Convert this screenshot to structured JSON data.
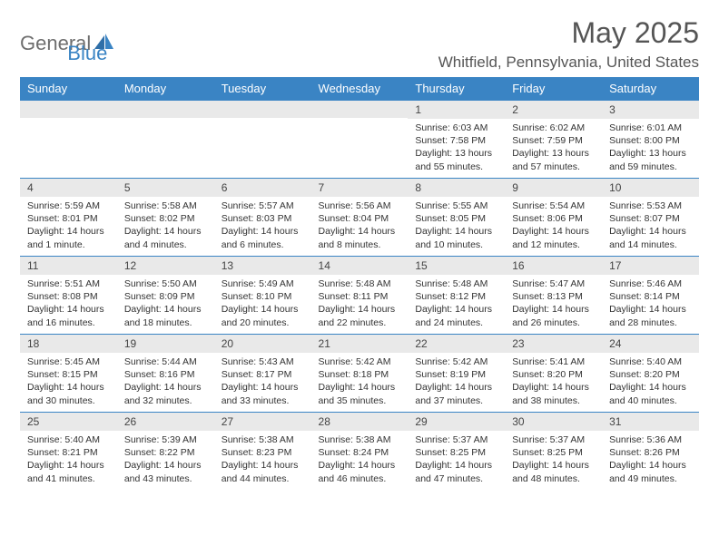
{
  "logo": {
    "part1": "General",
    "part2": "Blue"
  },
  "title": "May 2025",
  "location": "Whitfield, Pennsylvania, United States",
  "colors": {
    "header_bg": "#3a84c4",
    "header_text": "#ffffff",
    "daynum_bg": "#e9e9e9",
    "border": "#3a84c4",
    "body_text": "#333333",
    "title_text": "#555555",
    "logo_gray": "#6e6e6e",
    "logo_blue": "#3a84c4"
  },
  "day_headers": [
    "Sunday",
    "Monday",
    "Tuesday",
    "Wednesday",
    "Thursday",
    "Friday",
    "Saturday"
  ],
  "weeks": [
    [
      {
        "n": "",
        "sr": "",
        "ss": "",
        "dl": ""
      },
      {
        "n": "",
        "sr": "",
        "ss": "",
        "dl": ""
      },
      {
        "n": "",
        "sr": "",
        "ss": "",
        "dl": ""
      },
      {
        "n": "",
        "sr": "",
        "ss": "",
        "dl": ""
      },
      {
        "n": "1",
        "sr": "Sunrise: 6:03 AM",
        "ss": "Sunset: 7:58 PM",
        "dl": "Daylight: 13 hours and 55 minutes."
      },
      {
        "n": "2",
        "sr": "Sunrise: 6:02 AM",
        "ss": "Sunset: 7:59 PM",
        "dl": "Daylight: 13 hours and 57 minutes."
      },
      {
        "n": "3",
        "sr": "Sunrise: 6:01 AM",
        "ss": "Sunset: 8:00 PM",
        "dl": "Daylight: 13 hours and 59 minutes."
      }
    ],
    [
      {
        "n": "4",
        "sr": "Sunrise: 5:59 AM",
        "ss": "Sunset: 8:01 PM",
        "dl": "Daylight: 14 hours and 1 minute."
      },
      {
        "n": "5",
        "sr": "Sunrise: 5:58 AM",
        "ss": "Sunset: 8:02 PM",
        "dl": "Daylight: 14 hours and 4 minutes."
      },
      {
        "n": "6",
        "sr": "Sunrise: 5:57 AM",
        "ss": "Sunset: 8:03 PM",
        "dl": "Daylight: 14 hours and 6 minutes."
      },
      {
        "n": "7",
        "sr": "Sunrise: 5:56 AM",
        "ss": "Sunset: 8:04 PM",
        "dl": "Daylight: 14 hours and 8 minutes."
      },
      {
        "n": "8",
        "sr": "Sunrise: 5:55 AM",
        "ss": "Sunset: 8:05 PM",
        "dl": "Daylight: 14 hours and 10 minutes."
      },
      {
        "n": "9",
        "sr": "Sunrise: 5:54 AM",
        "ss": "Sunset: 8:06 PM",
        "dl": "Daylight: 14 hours and 12 minutes."
      },
      {
        "n": "10",
        "sr": "Sunrise: 5:53 AM",
        "ss": "Sunset: 8:07 PM",
        "dl": "Daylight: 14 hours and 14 minutes."
      }
    ],
    [
      {
        "n": "11",
        "sr": "Sunrise: 5:51 AM",
        "ss": "Sunset: 8:08 PM",
        "dl": "Daylight: 14 hours and 16 minutes."
      },
      {
        "n": "12",
        "sr": "Sunrise: 5:50 AM",
        "ss": "Sunset: 8:09 PM",
        "dl": "Daylight: 14 hours and 18 minutes."
      },
      {
        "n": "13",
        "sr": "Sunrise: 5:49 AM",
        "ss": "Sunset: 8:10 PM",
        "dl": "Daylight: 14 hours and 20 minutes."
      },
      {
        "n": "14",
        "sr": "Sunrise: 5:48 AM",
        "ss": "Sunset: 8:11 PM",
        "dl": "Daylight: 14 hours and 22 minutes."
      },
      {
        "n": "15",
        "sr": "Sunrise: 5:48 AM",
        "ss": "Sunset: 8:12 PM",
        "dl": "Daylight: 14 hours and 24 minutes."
      },
      {
        "n": "16",
        "sr": "Sunrise: 5:47 AM",
        "ss": "Sunset: 8:13 PM",
        "dl": "Daylight: 14 hours and 26 minutes."
      },
      {
        "n": "17",
        "sr": "Sunrise: 5:46 AM",
        "ss": "Sunset: 8:14 PM",
        "dl": "Daylight: 14 hours and 28 minutes."
      }
    ],
    [
      {
        "n": "18",
        "sr": "Sunrise: 5:45 AM",
        "ss": "Sunset: 8:15 PM",
        "dl": "Daylight: 14 hours and 30 minutes."
      },
      {
        "n": "19",
        "sr": "Sunrise: 5:44 AM",
        "ss": "Sunset: 8:16 PM",
        "dl": "Daylight: 14 hours and 32 minutes."
      },
      {
        "n": "20",
        "sr": "Sunrise: 5:43 AM",
        "ss": "Sunset: 8:17 PM",
        "dl": "Daylight: 14 hours and 33 minutes."
      },
      {
        "n": "21",
        "sr": "Sunrise: 5:42 AM",
        "ss": "Sunset: 8:18 PM",
        "dl": "Daylight: 14 hours and 35 minutes."
      },
      {
        "n": "22",
        "sr": "Sunrise: 5:42 AM",
        "ss": "Sunset: 8:19 PM",
        "dl": "Daylight: 14 hours and 37 minutes."
      },
      {
        "n": "23",
        "sr": "Sunrise: 5:41 AM",
        "ss": "Sunset: 8:20 PM",
        "dl": "Daylight: 14 hours and 38 minutes."
      },
      {
        "n": "24",
        "sr": "Sunrise: 5:40 AM",
        "ss": "Sunset: 8:20 PM",
        "dl": "Daylight: 14 hours and 40 minutes."
      }
    ],
    [
      {
        "n": "25",
        "sr": "Sunrise: 5:40 AM",
        "ss": "Sunset: 8:21 PM",
        "dl": "Daylight: 14 hours and 41 minutes."
      },
      {
        "n": "26",
        "sr": "Sunrise: 5:39 AM",
        "ss": "Sunset: 8:22 PM",
        "dl": "Daylight: 14 hours and 43 minutes."
      },
      {
        "n": "27",
        "sr": "Sunrise: 5:38 AM",
        "ss": "Sunset: 8:23 PM",
        "dl": "Daylight: 14 hours and 44 minutes."
      },
      {
        "n": "28",
        "sr": "Sunrise: 5:38 AM",
        "ss": "Sunset: 8:24 PM",
        "dl": "Daylight: 14 hours and 46 minutes."
      },
      {
        "n": "29",
        "sr": "Sunrise: 5:37 AM",
        "ss": "Sunset: 8:25 PM",
        "dl": "Daylight: 14 hours and 47 minutes."
      },
      {
        "n": "30",
        "sr": "Sunrise: 5:37 AM",
        "ss": "Sunset: 8:25 PM",
        "dl": "Daylight: 14 hours and 48 minutes."
      },
      {
        "n": "31",
        "sr": "Sunrise: 5:36 AM",
        "ss": "Sunset: 8:26 PM",
        "dl": "Daylight: 14 hours and 49 minutes."
      }
    ]
  ]
}
